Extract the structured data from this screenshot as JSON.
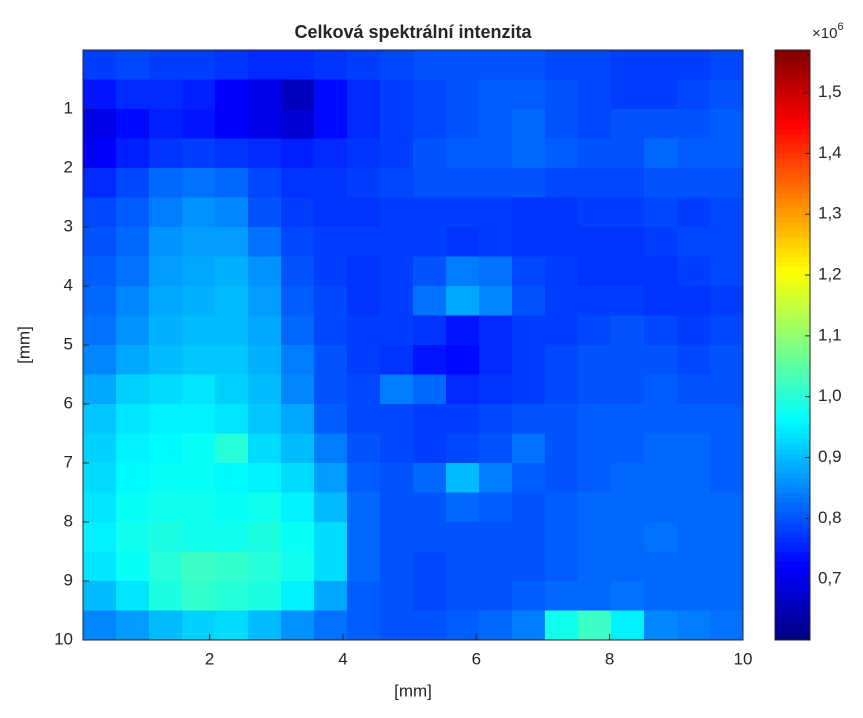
{
  "chart_data": {
    "type": "heatmap",
    "title": "Celková spektrální intenzita",
    "xlabel": "[mm]",
    "ylabel": "[mm]",
    "xlim": [
      0.1,
      10
    ],
    "ylim": [
      0,
      10
    ],
    "y_reversed": true,
    "xticks": [
      2,
      4,
      6,
      8,
      10
    ],
    "yticks": [
      1,
      2,
      3,
      4,
      5,
      6,
      7,
      8,
      9,
      10
    ],
    "colormap": "jet",
    "clim": [
      0.6,
      1.57
    ],
    "cticks": [
      {
        "value": 0.7,
        "label": "0,7"
      },
      {
        "value": 0.8,
        "label": "0,8"
      },
      {
        "value": 0.9,
        "label": "0,9"
      },
      {
        "value": 1.0,
        "label": "1,0"
      },
      {
        "value": 1.1,
        "label": "1,1"
      },
      {
        "value": 1.2,
        "label": "1,2"
      },
      {
        "value": 1.3,
        "label": "1,3"
      },
      {
        "value": 1.4,
        "label": "1,4"
      },
      {
        "value": 1.5,
        "label": "1,5"
      }
    ],
    "colorbar_multiplier": {
      "base": "×10",
      "exponent": "6"
    },
    "z": [
      [
        0.78,
        0.79,
        0.78,
        0.78,
        0.77,
        0.76,
        0.76,
        0.77,
        0.78,
        0.79,
        0.8,
        0.8,
        0.8,
        0.8,
        0.79,
        0.79,
        0.78,
        0.78,
        0.78,
        0.79
      ],
      [
        0.74,
        0.76,
        0.76,
        0.75,
        0.72,
        0.7,
        0.66,
        0.73,
        0.76,
        0.78,
        0.79,
        0.8,
        0.81,
        0.81,
        0.8,
        0.79,
        0.78,
        0.78,
        0.79,
        0.8
      ],
      [
        0.7,
        0.73,
        0.75,
        0.74,
        0.72,
        0.7,
        0.68,
        0.73,
        0.76,
        0.78,
        0.79,
        0.8,
        0.81,
        0.82,
        0.8,
        0.79,
        0.8,
        0.8,
        0.8,
        0.81
      ],
      [
        0.72,
        0.75,
        0.77,
        0.78,
        0.77,
        0.76,
        0.75,
        0.76,
        0.77,
        0.78,
        0.8,
        0.81,
        0.81,
        0.82,
        0.81,
        0.8,
        0.8,
        0.82,
        0.81,
        0.81
      ],
      [
        0.76,
        0.79,
        0.82,
        0.83,
        0.82,
        0.79,
        0.77,
        0.77,
        0.78,
        0.79,
        0.8,
        0.8,
        0.8,
        0.8,
        0.79,
        0.79,
        0.79,
        0.8,
        0.8,
        0.8
      ],
      [
        0.79,
        0.81,
        0.84,
        0.86,
        0.85,
        0.8,
        0.78,
        0.77,
        0.77,
        0.78,
        0.78,
        0.78,
        0.78,
        0.77,
        0.77,
        0.78,
        0.78,
        0.79,
        0.78,
        0.79
      ],
      [
        0.8,
        0.82,
        0.86,
        0.87,
        0.87,
        0.83,
        0.79,
        0.78,
        0.78,
        0.78,
        0.78,
        0.77,
        0.78,
        0.77,
        0.77,
        0.77,
        0.77,
        0.78,
        0.79,
        0.79
      ],
      [
        0.81,
        0.83,
        0.87,
        0.88,
        0.89,
        0.86,
        0.8,
        0.78,
        0.77,
        0.78,
        0.8,
        0.84,
        0.83,
        0.79,
        0.78,
        0.77,
        0.77,
        0.77,
        0.78,
        0.79
      ],
      [
        0.82,
        0.85,
        0.88,
        0.89,
        0.9,
        0.87,
        0.81,
        0.79,
        0.77,
        0.78,
        0.83,
        0.88,
        0.85,
        0.8,
        0.78,
        0.78,
        0.78,
        0.77,
        0.77,
        0.78
      ],
      [
        0.83,
        0.86,
        0.89,
        0.9,
        0.9,
        0.88,
        0.82,
        0.79,
        0.78,
        0.78,
        0.77,
        0.74,
        0.76,
        0.78,
        0.78,
        0.79,
        0.8,
        0.79,
        0.78,
        0.79
      ],
      [
        0.85,
        0.88,
        0.9,
        0.91,
        0.91,
        0.89,
        0.84,
        0.8,
        0.78,
        0.77,
        0.74,
        0.73,
        0.76,
        0.78,
        0.79,
        0.8,
        0.8,
        0.8,
        0.79,
        0.8
      ],
      [
        0.88,
        0.92,
        0.93,
        0.94,
        0.92,
        0.9,
        0.85,
        0.8,
        0.79,
        0.84,
        0.82,
        0.76,
        0.77,
        0.78,
        0.79,
        0.8,
        0.8,
        0.81,
        0.8,
        0.8
      ],
      [
        0.91,
        0.94,
        0.95,
        0.95,
        0.94,
        0.91,
        0.88,
        0.81,
        0.79,
        0.79,
        0.78,
        0.78,
        0.79,
        0.8,
        0.8,
        0.81,
        0.81,
        0.81,
        0.81,
        0.81
      ],
      [
        0.92,
        0.95,
        0.96,
        0.97,
        1.0,
        0.93,
        0.9,
        0.84,
        0.8,
        0.79,
        0.78,
        0.79,
        0.8,
        0.83,
        0.8,
        0.81,
        0.81,
        0.82,
        0.82,
        0.81
      ],
      [
        0.93,
        0.96,
        0.97,
        0.97,
        0.96,
        0.95,
        0.93,
        0.87,
        0.81,
        0.8,
        0.82,
        0.9,
        0.84,
        0.81,
        0.8,
        0.81,
        0.82,
        0.82,
        0.82,
        0.81
      ],
      [
        0.94,
        0.97,
        0.98,
        0.98,
        0.97,
        0.98,
        0.95,
        0.9,
        0.82,
        0.8,
        0.8,
        0.82,
        0.81,
        0.8,
        0.81,
        0.82,
        0.82,
        0.82,
        0.82,
        0.82
      ],
      [
        0.95,
        0.98,
        0.99,
        0.98,
        0.98,
        0.99,
        0.97,
        0.93,
        0.82,
        0.8,
        0.8,
        0.8,
        0.8,
        0.8,
        0.81,
        0.82,
        0.82,
        0.83,
        0.82,
        0.82
      ],
      [
        0.94,
        0.97,
        1.0,
        1.02,
        1.01,
        1.0,
        0.98,
        0.93,
        0.82,
        0.8,
        0.79,
        0.8,
        0.8,
        0.8,
        0.81,
        0.82,
        0.82,
        0.82,
        0.82,
        0.82
      ],
      [
        0.9,
        0.94,
        0.99,
        1.01,
        1.0,
        0.99,
        0.95,
        0.88,
        0.81,
        0.8,
        0.79,
        0.8,
        0.8,
        0.81,
        0.82,
        0.82,
        0.83,
        0.82,
        0.82,
        0.82
      ],
      [
        0.85,
        0.87,
        0.9,
        0.92,
        0.93,
        0.9,
        0.86,
        0.83,
        0.81,
        0.8,
        0.8,
        0.81,
        0.82,
        0.84,
        0.98,
        1.02,
        0.95,
        0.85,
        0.84,
        0.83
      ]
    ]
  }
}
